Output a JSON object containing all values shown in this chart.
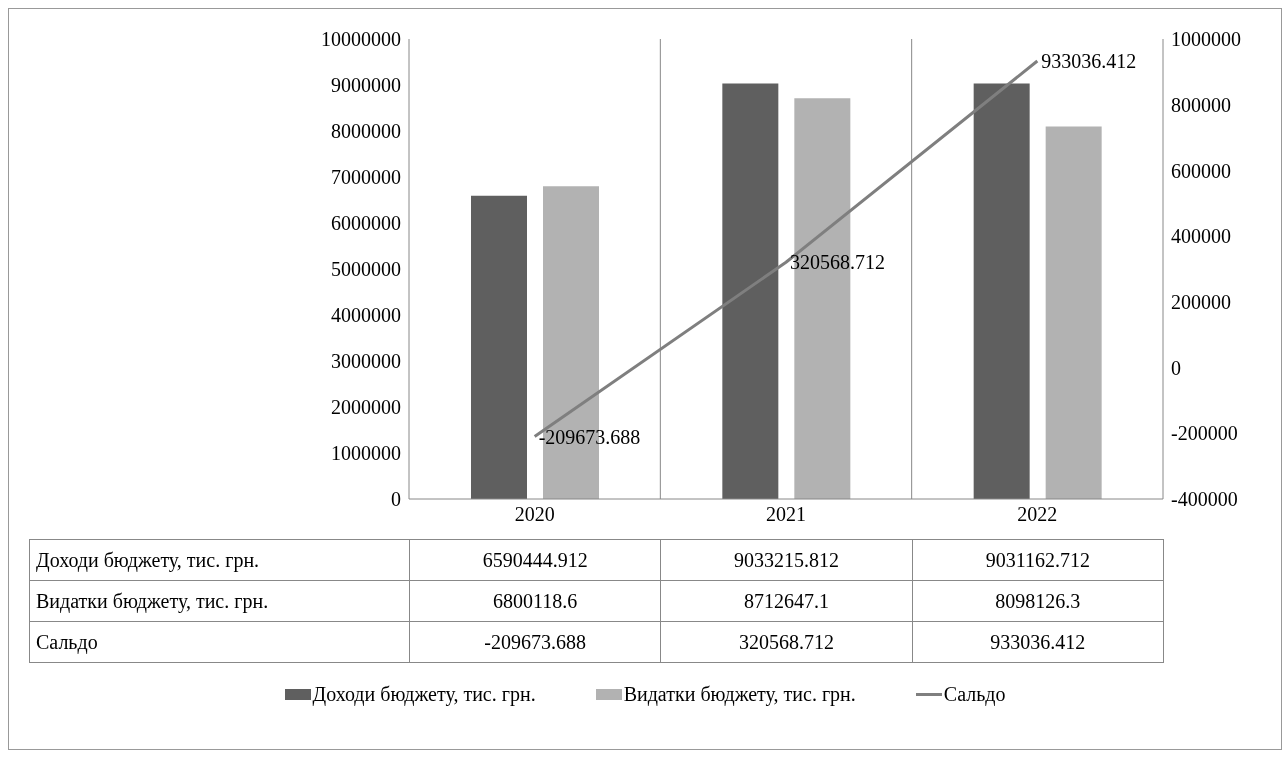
{
  "chart_data": {
    "type": "bar",
    "categories": [
      "2020",
      "2021",
      "2022"
    ],
    "series": [
      {
        "name": "Доходи бюджету, тис. грн.",
        "color": "#5f5f5f",
        "values": [
          6590444.912,
          9033215.812,
          9031162.712
        ]
      },
      {
        "name": "Видатки бюджету, тис. грн.",
        "color": "#b2b2b2",
        "values": [
          6800118.6,
          8712647.1,
          8098126.3
        ]
      },
      {
        "name": "Сальдо",
        "type": "line",
        "axis": "y2",
        "color": "#7f7f7f",
        "values": [
          -209673.688,
          320568.712,
          933036.412
        ]
      }
    ],
    "ylim": [
      0,
      10000000
    ],
    "yticks": [
      0,
      1000000,
      2000000,
      3000000,
      4000000,
      5000000,
      6000000,
      7000000,
      8000000,
      9000000,
      10000000
    ],
    "y2lim": [
      -400000,
      1000000
    ],
    "y2ticks": [
      -400000,
      -200000,
      0,
      200000,
      400000,
      600000,
      800000,
      1000000
    ],
    "annotations": [
      "-209673.688",
      "320568.712",
      "933036.412"
    ],
    "data_labels": true,
    "grid": "x",
    "legend": "bottom",
    "marker": "none"
  }
}
